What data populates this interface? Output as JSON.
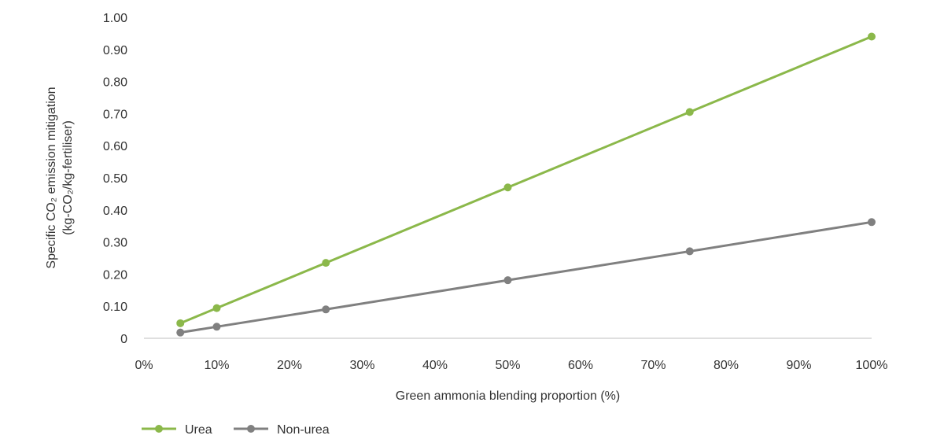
{
  "chart_data": {
    "type": "line",
    "x": [
      5,
      10,
      25,
      50,
      75,
      100
    ],
    "series": [
      {
        "name": "Urea",
        "color": "#8bb84a",
        "values": [
          0.047,
          0.094,
          0.235,
          0.47,
          0.705,
          0.94
        ]
      },
      {
        "name": "Non-urea",
        "color": "#808080",
        "values": [
          0.018,
          0.036,
          0.09,
          0.181,
          0.271,
          0.362
        ]
      }
    ],
    "xlabel": "Green ammonia blending proportion (%)",
    "ylabel_line1": "Specific CO₂ emission mitigation",
    "ylabel_line2": "(kg-CO₂/kg-fertiliser)",
    "xlim": [
      0,
      100
    ],
    "ylim": [
      0,
      1.0
    ],
    "x_ticks": [
      0,
      10,
      20,
      30,
      40,
      50,
      60,
      70,
      80,
      90,
      100
    ],
    "x_tick_labels": [
      "0%",
      "10%",
      "20%",
      "30%",
      "40%",
      "50%",
      "60%",
      "70%",
      "80%",
      "90%",
      "100%"
    ],
    "y_ticks": [
      0,
      0.1,
      0.2,
      0.3,
      0.4,
      0.5,
      0.6,
      0.7,
      0.8,
      0.9,
      1.0
    ],
    "y_tick_labels": [
      "0",
      "0.10",
      "0.20",
      "0.30",
      "0.40",
      "0.50",
      "0.60",
      "0.70",
      "0.80",
      "0.90",
      "1.00"
    ],
    "grid": false,
    "legend_position": "bottom-left"
  }
}
